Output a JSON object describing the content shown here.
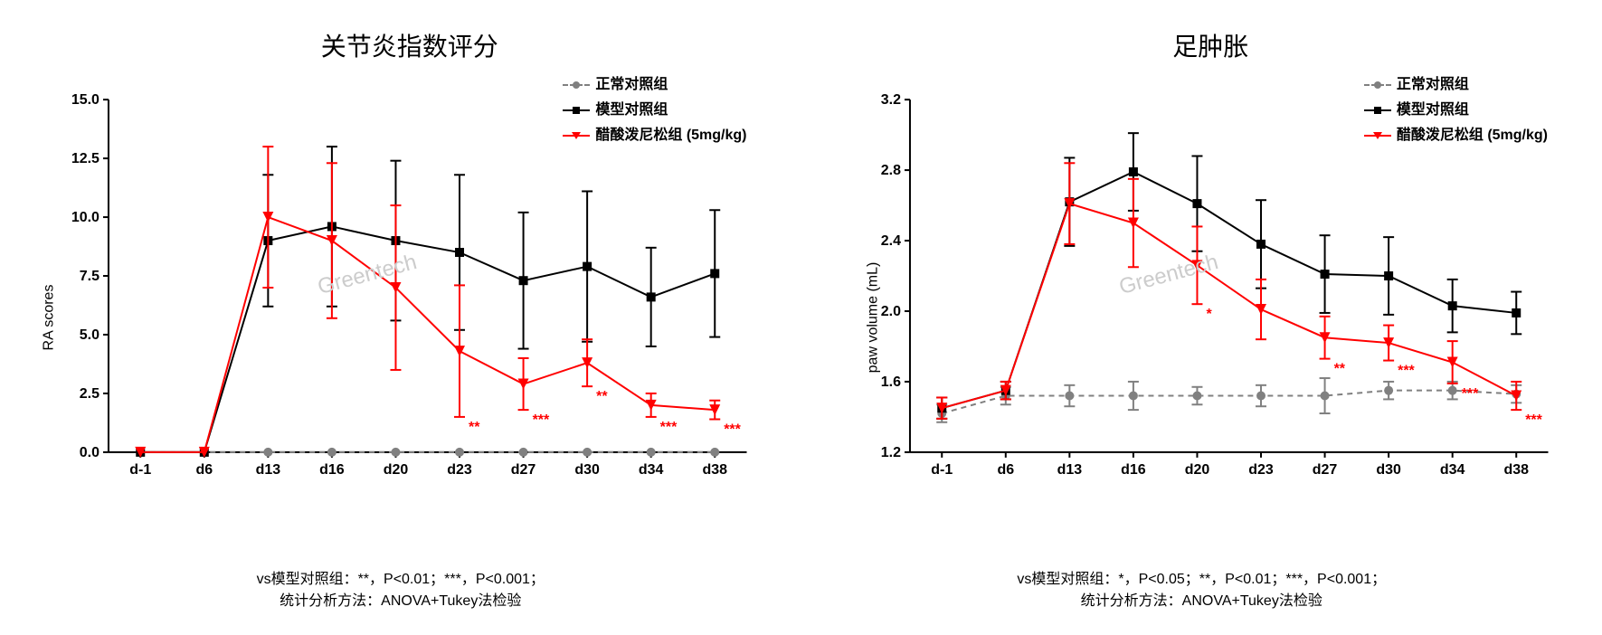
{
  "watermark": "Greentech",
  "chart1": {
    "type": "line",
    "title": "关节炎指数评分",
    "ylabel": "RA scores",
    "ylim": [
      0,
      15.0
    ],
    "yticks": [
      0,
      2.5,
      5.0,
      7.5,
      10.0,
      12.5,
      15.0
    ],
    "xlabels": [
      "d-1",
      "d6",
      "d13",
      "d16",
      "d20",
      "d23",
      "d27",
      "d30",
      "d34",
      "d38"
    ],
    "footer_line1": "vs模型对照组：**，P<0.01；***，P<0.001；",
    "footer_line2": "统计分析方法：ANOVA+Tukey法检验",
    "legend": [
      {
        "label": "正常对照组",
        "color": "#808080",
        "marker": "circle",
        "dash": true
      },
      {
        "label": "模型对照组",
        "color": "#000000",
        "marker": "square",
        "dash": false
      },
      {
        "label": "醋酸泼尼松组 (5mg/kg)",
        "color": "#ff0000",
        "marker": "triangle-down",
        "dash": false
      }
    ],
    "series": {
      "normal": {
        "color": "#808080",
        "dash": true,
        "marker": "circle",
        "y": [
          0,
          0,
          0,
          0,
          0,
          0,
          0,
          0,
          0,
          0
        ],
        "err": [
          0,
          0,
          0,
          0,
          0,
          0,
          0,
          0,
          0,
          0
        ]
      },
      "model": {
        "color": "#000000",
        "dash": false,
        "marker": "square",
        "y": [
          0,
          0,
          9.0,
          9.6,
          9.0,
          8.5,
          7.3,
          7.9,
          6.6,
          7.6
        ],
        "err": [
          0,
          0,
          2.8,
          3.4,
          3.4,
          3.3,
          2.9,
          3.2,
          2.1,
          2.7
        ]
      },
      "drug": {
        "color": "#ff0000",
        "dash": false,
        "marker": "triangle-down",
        "y": [
          0,
          0,
          10.0,
          9.0,
          7.0,
          4.3,
          2.9,
          3.8,
          2.0,
          1.8
        ],
        "err": [
          0,
          0,
          3.0,
          3.3,
          3.5,
          2.8,
          1.1,
          1.0,
          0.5,
          0.4
        ],
        "sig": [
          "",
          "",
          "",
          "",
          "",
          "**",
          "***",
          "**",
          "***",
          "***"
        ]
      }
    },
    "background_color": "#ffffff",
    "axis_color": "#000000",
    "tick_length": 6,
    "line_width": 2,
    "marker_size": 5,
    "title_fontsize": 28,
    "label_fontsize": 16,
    "tick_fontsize": 16,
    "errorbar_cap": 6
  },
  "chart2": {
    "type": "line",
    "title": "足肿胀",
    "ylabel": "paw volume (mL)",
    "ylim": [
      1.2,
      3.2
    ],
    "yticks": [
      1.2,
      1.6,
      2.0,
      2.4,
      2.8,
      3.2
    ],
    "xlabels": [
      "d-1",
      "d6",
      "d13",
      "d16",
      "d20",
      "d23",
      "d27",
      "d30",
      "d34",
      "d38"
    ],
    "footer_line1": "vs模型对照组：*，P<0.05；**，P<0.01；***，P<0.001；",
    "footer_line2": "统计分析方法：ANOVA+Tukey法检验",
    "legend": [
      {
        "label": "正常对照组",
        "color": "#808080",
        "marker": "circle",
        "dash": true
      },
      {
        "label": "模型对照组",
        "color": "#000000",
        "marker": "square",
        "dash": false
      },
      {
        "label": "醋酸泼尼松组 (5mg/kg)",
        "color": "#ff0000",
        "marker": "triangle-down",
        "dash": false
      }
    ],
    "series": {
      "normal": {
        "color": "#808080",
        "dash": true,
        "marker": "circle",
        "y": [
          1.42,
          1.52,
          1.52,
          1.52,
          1.52,
          1.52,
          1.52,
          1.55,
          1.55,
          1.53
        ],
        "err": [
          0.05,
          0.05,
          0.06,
          0.08,
          0.05,
          0.06,
          0.1,
          0.05,
          0.05,
          0.05
        ]
      },
      "model": {
        "color": "#000000",
        "dash": false,
        "marker": "square",
        "y": [
          1.45,
          1.55,
          2.62,
          2.79,
          2.61,
          2.38,
          2.21,
          2.2,
          2.03,
          1.99
        ],
        "err": [
          0.06,
          0.05,
          0.25,
          0.22,
          0.27,
          0.25,
          0.22,
          0.22,
          0.15,
          0.12
        ]
      },
      "drug": {
        "color": "#ff0000",
        "dash": false,
        "marker": "triangle-down",
        "y": [
          1.45,
          1.55,
          2.61,
          2.5,
          2.26,
          2.01,
          1.85,
          1.82,
          1.71,
          1.52
        ],
        "err": [
          0.06,
          0.05,
          0.23,
          0.25,
          0.22,
          0.17,
          0.12,
          0.1,
          0.12,
          0.08
        ],
        "sig": [
          "",
          "",
          "",
          "",
          "*",
          "",
          "**",
          "***",
          "***",
          "***"
        ]
      }
    },
    "background_color": "#ffffff",
    "axis_color": "#000000",
    "tick_length": 6,
    "line_width": 2,
    "marker_size": 5,
    "title_fontsize": 28,
    "label_fontsize": 16,
    "tick_fontsize": 16,
    "errorbar_cap": 6
  }
}
